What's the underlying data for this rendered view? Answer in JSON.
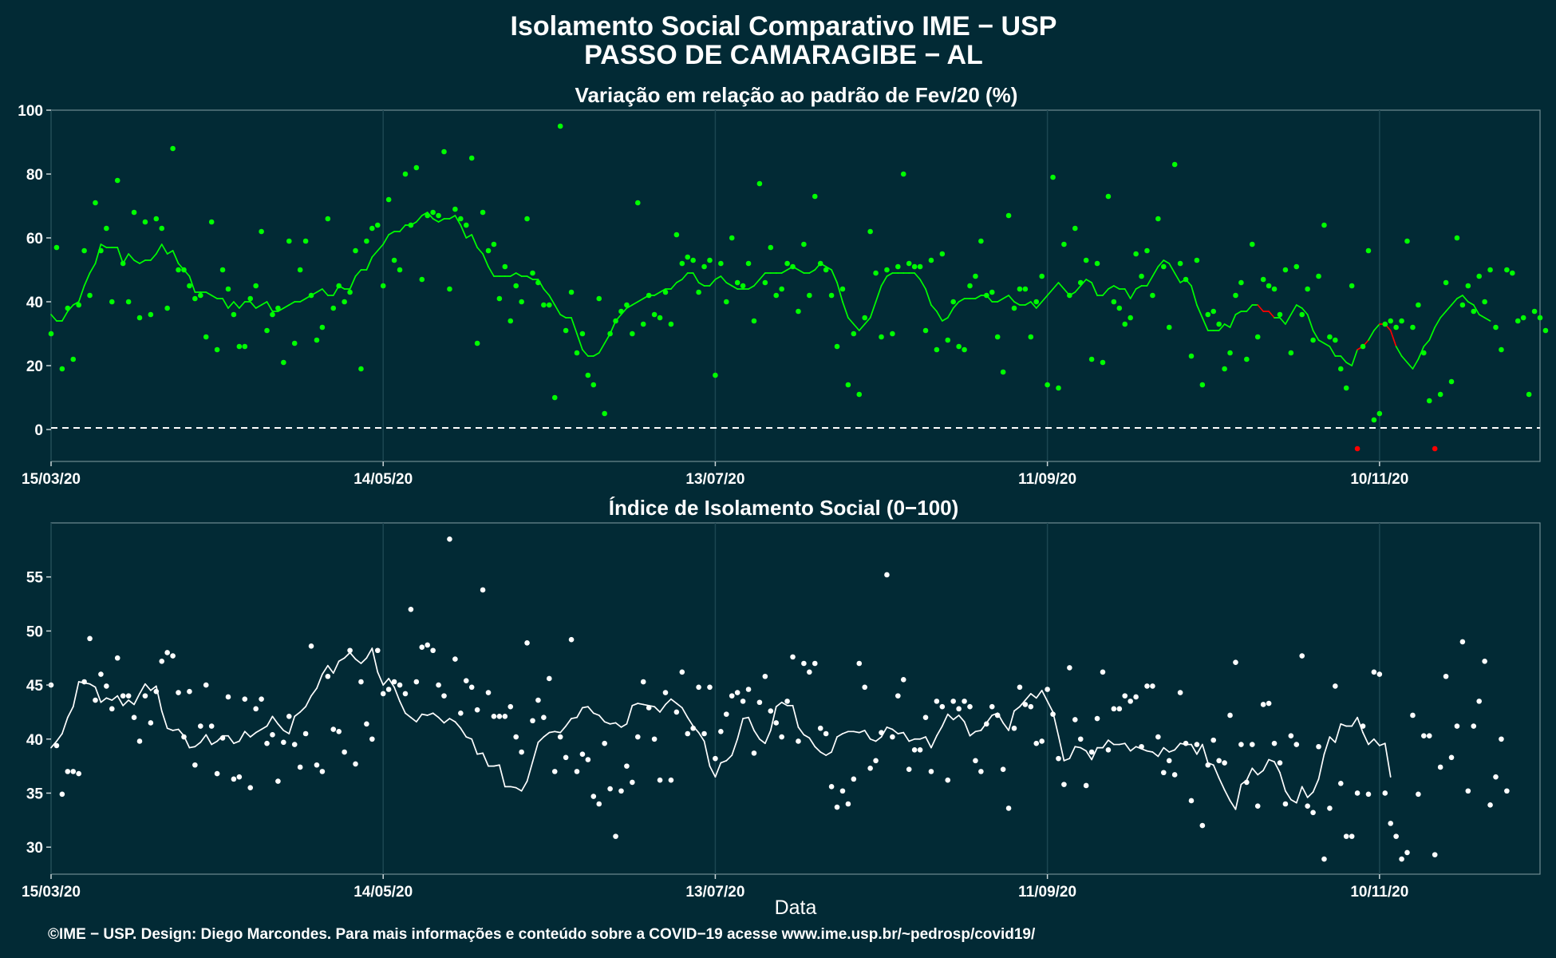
{
  "title_line1": "Isolamento Social Comparativo IME − USP",
  "title_line2": "PASSO DE CAMARAGIBE − AL",
  "footer": "©IME − USP. Design: Diego Marcondes. Para mais informações e conteúdo sobre a COVID−19 acesse www.ime.usp.br/~pedrosp/covid19/",
  "colors": {
    "background": "#022a35",
    "variation": "#00ff00",
    "negative": "#ff0000",
    "index": "#ffffff"
  },
  "chart_data": [
    {
      "type": "scatter",
      "title": "Variação em relação ao padrão de Fev/20 (%)",
      "xlabel": "",
      "ylabel": "",
      "x_ticks": [
        "15/03/20",
        "14/05/20",
        "13/07/20",
        "11/09/20",
        "10/11/20"
      ],
      "xlim": [
        "15/03/20",
        "09/12/20"
      ],
      "ylim": [
        -10,
        100
      ],
      "y_ticks": [
        0,
        20,
        40,
        60,
        80,
        100
      ],
      "reference_line": 0,
      "grid": "vertical lines at date ticks",
      "series": [
        {
          "points": [
            30,
            57,
            19,
            38,
            22,
            39,
            56,
            42,
            71,
            56,
            63,
            40,
            78,
            52,
            40,
            68,
            35,
            65,
            36,
            66,
            63,
            38,
            88,
            50,
            50,
            45,
            41,
            42,
            29,
            65,
            25,
            50,
            44,
            36,
            26,
            26,
            41,
            45,
            62,
            31,
            36,
            38,
            21,
            59,
            27,
            50,
            59,
            42,
            28,
            32,
            66,
            38,
            45,
            40,
            43,
            56,
            19,
            59,
            63,
            64,
            45,
            72,
            53,
            50,
            80,
            64,
            82,
            47,
            67,
            68,
            67,
            87,
            44,
            69,
            66,
            64,
            85,
            27,
            68,
            56,
            58,
            41,
            51,
            34,
            45,
            40,
            66,
            49,
            46,
            39,
            39,
            10,
            95,
            31,
            43,
            24,
            30,
            17,
            14,
            41,
            5,
            30,
            34,
            37,
            39,
            30,
            71,
            33,
            42,
            36,
            35,
            43,
            33,
            61,
            52,
            54,
            53,
            43,
            51,
            53,
            17,
            52,
            40,
            60,
            46,
            45,
            52,
            34,
            77,
            46,
            57,
            42,
            44,
            52,
            51,
            37,
            58,
            42,
            73,
            52,
            50,
            42,
            26,
            44,
            14,
            30,
            11,
            35,
            62,
            49,
            29,
            50,
            30,
            51,
            80,
            52,
            51,
            51,
            31,
            53,
            25,
            55,
            28,
            40,
            26,
            25,
            45,
            48,
            59,
            42,
            43,
            29,
            18,
            67,
            38,
            44,
            44,
            29,
            40,
            48,
            14,
            79,
            13,
            58,
            42,
            63,
            46,
            53,
            22,
            52,
            21,
            73,
            40,
            38,
            33,
            35,
            55,
            48,
            56,
            42,
            66,
            51,
            32,
            83,
            52,
            47,
            23,
            53,
            14,
            36,
            37,
            33,
            19,
            24,
            42,
            46,
            22,
            58,
            29,
            47,
            45,
            44,
            36,
            50,
            24,
            51,
            36,
            44,
            28,
            48,
            64,
            29,
            28,
            19,
            13,
            45,
            -6,
            26,
            56,
            3,
            5,
            33,
            34,
            32,
            34,
            59,
            32,
            39,
            24,
            9,
            -6,
            11,
            46,
            15,
            60,
            39,
            45,
            37,
            48,
            40,
            50,
            32,
            25,
            50,
            49,
            34,
            35,
            11,
            37,
            35,
            31
          ],
          "rolling_mean": [
            36,
            34,
            34,
            37,
            39,
            40,
            45,
            49,
            52,
            58,
            57,
            57,
            57,
            52,
            55,
            53,
            52,
            53,
            53,
            55,
            58,
            55,
            56,
            52,
            50,
            48,
            43,
            43,
            43,
            42,
            41,
            41,
            38,
            40,
            38,
            40,
            40,
            38,
            39,
            40,
            37,
            37,
            38,
            39,
            40,
            40,
            41,
            42,
            43,
            44,
            42,
            42,
            45,
            44,
            44,
            48,
            50,
            50,
            54,
            56,
            58,
            61,
            62,
            62,
            64,
            64,
            65,
            67,
            68,
            66,
            65,
            66,
            66,
            67,
            64,
            60,
            61,
            57,
            55,
            51,
            48,
            48,
            48,
            48,
            49,
            48,
            48,
            47,
            47,
            44,
            42,
            39,
            36,
            35,
            35,
            30,
            25,
            23,
            23,
            24,
            27,
            30,
            34,
            36,
            38,
            39,
            40,
            41,
            42,
            42,
            43,
            44,
            44,
            46,
            47,
            49,
            49,
            46,
            45,
            45,
            47,
            48,
            46,
            45,
            44,
            44,
            44,
            45,
            47,
            49,
            49,
            49,
            49,
            50,
            51,
            50,
            49,
            49,
            50,
            52,
            51,
            50,
            46,
            40,
            35,
            33,
            31,
            33,
            35,
            40,
            45,
            48,
            49,
            49,
            49,
            49,
            49,
            47,
            44,
            39,
            37,
            34,
            35,
            38,
            40,
            41,
            41,
            41,
            42,
            42,
            40,
            40,
            41,
            42,
            40,
            39,
            39,
            40,
            38,
            40,
            42,
            44,
            46,
            44,
            42,
            43,
            45,
            47,
            46,
            42,
            42,
            44,
            45,
            44,
            44,
            41,
            44,
            45,
            45,
            48,
            51,
            53,
            52,
            49,
            46,
            47,
            45,
            39,
            35,
            31,
            31,
            31,
            33,
            32,
            36,
            37,
            37,
            39,
            39,
            37,
            37,
            35,
            35,
            33,
            36,
            39,
            38,
            36,
            31,
            28,
            27,
            26,
            23,
            23,
            21,
            20,
            25,
            26,
            28,
            31,
            33,
            33,
            31,
            26,
            23,
            21,
            19,
            22,
            26,
            28,
            32,
            35,
            37,
            39,
            41,
            42,
            40,
            39,
            36,
            35,
            34
          ],
          "negative_rolling_mean_indices": [
            219,
            220,
            237,
            241,
            242
          ]
        }
      ]
    },
    {
      "type": "scatter",
      "title": "Índice de Isolamento Social (0−100)",
      "xlabel": "Data",
      "ylabel": "",
      "x_ticks": [
        "15/03/20",
        "14/05/20",
        "13/07/20",
        "11/09/20",
        "10/11/20"
      ],
      "xlim": [
        "15/03/20",
        "09/12/20"
      ],
      "ylim": [
        27.5,
        60
      ],
      "y_ticks": [
        30,
        35,
        40,
        45,
        50,
        55
      ],
      "grid": "vertical lines at date ticks",
      "series": [
        {
          "points": [
            45.0,
            39.4,
            34.9,
            37.0,
            37.0,
            36.8,
            45.3,
            49.3,
            43.6,
            46.0,
            44.9,
            42.8,
            47.5,
            44.0,
            44.0,
            42.0,
            39.8,
            44.0,
            41.5,
            44.4,
            47.2,
            48.0,
            47.7,
            44.3,
            40.2,
            44.4,
            37.6,
            41.2,
            45.0,
            41.2,
            36.8,
            40.1,
            43.9,
            36.3,
            36.5,
            43.7,
            35.5,
            42.8,
            43.7,
            39.6,
            40.4,
            36.1,
            39.7,
            42.1,
            39.5,
            37.4,
            40.5,
            48.6,
            37.6,
            37.0,
            45.8,
            40.9,
            40.7,
            38.8,
            48.2,
            37.7,
            45.3,
            41.4,
            40.0,
            48.2,
            44.2,
            44.6,
            45.3,
            45.0,
            44.2,
            52.0,
            45.3,
            48.5,
            48.7,
            48.2,
            45.0,
            44.0,
            58.5,
            47.4,
            42.4,
            45.4,
            44.8,
            42.7,
            53.8,
            44.3,
            42.1,
            42.1,
            42.1,
            43.0,
            40.2,
            38.8,
            48.9,
            41.7,
            43.6,
            42.0,
            45.6,
            37.0,
            40.2,
            38.3,
            49.2,
            37.0,
            38.6,
            38.1,
            34.7,
            34.0,
            39.6,
            35.4,
            31.0,
            35.2,
            37.5,
            36.0,
            40.2,
            45.3,
            42.9,
            40.0,
            36.2,
            44.3,
            36.2,
            42.5,
            46.2,
            40.5,
            41.0,
            44.8,
            40.5,
            44.8,
            38.2,
            40.7,
            42.3,
            44.0,
            44.3,
            43.5,
            44.6,
            38.7,
            43.4,
            45.8,
            42.6,
            41.5,
            40.2,
            43.5,
            47.6,
            39.8,
            47.0,
            46.2,
            47.0,
            41.0,
            40.5,
            35.6,
            33.7,
            35.2,
            34.0,
            36.3,
            47.0,
            44.8,
            37.3,
            38.0,
            40.6,
            55.2,
            40.2,
            44.0,
            45.5,
            37.2,
            39.0,
            39.0,
            42.0,
            37.0,
            43.5,
            43.0,
            36.2,
            43.5,
            42.8,
            43.5,
            43.0,
            38.0,
            37.0,
            41.4,
            43.0,
            42.2,
            37.2,
            33.6,
            41.0,
            44.8,
            43.2,
            43.0,
            39.6,
            39.8,
            44.6,
            42.3,
            38.2,
            35.8,
            46.6,
            41.8,
            40.0,
            35.7,
            38.8,
            41.9,
            46.2,
            39.0,
            42.8,
            42.8,
            44.0,
            43.5,
            43.9,
            39.3,
            44.9,
            44.9,
            40.2,
            36.9,
            38.0,
            36.7,
            44.3,
            39.6,
            34.3,
            39.5,
            32.0,
            37.6,
            39.9,
            38.0,
            37.8,
            42.2,
            47.1,
            39.5,
            36.0,
            39.5,
            33.8,
            43.2,
            43.3,
            39.6,
            37.8,
            34.0,
            40.3,
            39.5,
            47.7,
            33.8,
            33.2,
            39.3,
            28.9,
            33.6,
            44.9,
            35.9,
            31.0,
            31.0,
            35.0,
            41.2,
            34.9,
            46.2,
            46.0,
            35.0,
            32.2,
            31.0,
            28.9,
            29.5,
            42.2,
            34.9,
            40.3,
            40.3,
            29.3,
            37.4,
            45.8,
            38.3,
            41.2,
            49.0,
            35.2,
            41.2,
            43.5,
            47.2,
            33.9,
            36.5,
            40.0,
            35.2
          ],
          "rolling_mean": [
            39.2,
            39.8,
            40.5,
            42.0,
            43.0,
            45.3,
            45.2,
            45.1,
            44.8,
            43.4,
            43.8,
            43.6,
            44.0,
            43.1,
            43.6,
            43.2,
            44.2,
            45.1,
            44.5,
            44.9,
            42.6,
            41.0,
            40.8,
            40.9,
            40.3,
            39.2,
            39.3,
            39.7,
            40.4,
            39.5,
            39.8,
            40.3,
            40.3,
            39.6,
            39.8,
            40.7,
            40.2,
            40.6,
            40.9,
            41.2,
            42.1,
            41.4,
            40.8,
            40.5,
            42.1,
            42.5,
            43.0,
            44.0,
            44.7,
            46.0,
            46.8,
            46.1,
            47.2,
            47.5,
            48.0,
            47.4,
            47.0,
            47.5,
            48.4,
            46.2,
            45.0,
            45.6,
            44.8,
            43.5,
            42.4,
            42.0,
            41.6,
            42.3,
            42.2,
            42.4,
            42.0,
            41.5,
            41.9,
            41.6,
            41.0,
            40.2,
            40.0,
            38.6,
            38.7,
            37.5,
            37.5,
            37.6,
            35.6,
            35.6,
            35.5,
            35.2,
            36.1,
            37.9,
            39.7,
            40.2,
            40.6,
            40.7,
            40.6,
            41.2,
            41.9,
            42.0,
            42.9,
            43.0,
            42.4,
            42.2,
            41.6,
            41.4,
            41.5,
            41.1,
            41.4,
            43.1,
            43.3,
            43.2,
            43.1,
            43.0,
            42.5,
            43.2,
            43.7,
            43.3,
            42.9,
            42.0,
            41.2,
            40.6,
            39.8,
            37.5,
            36.5,
            37.8,
            38.0,
            38.5,
            40.0,
            41.9,
            42.0,
            40.8,
            40.0,
            39.6,
            40.8,
            43.0,
            43.4,
            43.1,
            43.1,
            41.1,
            40.4,
            40.1,
            39.3,
            38.8,
            38.5,
            38.8,
            40.2,
            40.5,
            40.7,
            40.7,
            40.6,
            40.8,
            40.0,
            39.8,
            40.2,
            41.1,
            40.9,
            40.5,
            40.6,
            39.8,
            40.0,
            40.0,
            40.2,
            39.2,
            40.3,
            41.2,
            42.3,
            41.8,
            42.2,
            41.6,
            40.3,
            40.7,
            40.8,
            41.5,
            42.2,
            42.4,
            41.5,
            40.8,
            42.6,
            43.0,
            43.6,
            44.2,
            43.8,
            44.5,
            43.5,
            42.5,
            40.3,
            38.0,
            38.2,
            39.3,
            39.2,
            38.9,
            38.1,
            39.2,
            39.2,
            39.9,
            39.5,
            39.5,
            39.6,
            38.9,
            39.3,
            39.1,
            38.9,
            38.8,
            38.4,
            39.2,
            38.8,
            39.0,
            39.6,
            39.5,
            39.5,
            38.6,
            39.5,
            37.8,
            37.6,
            36.4,
            35.3,
            34.3,
            33.5,
            35.8,
            36.2,
            37.3,
            36.7,
            37.1,
            38.1,
            37.9,
            36.9,
            35.2,
            34.4,
            34.1,
            35.6,
            34.6,
            35.1,
            36.3,
            38.6,
            40.2,
            39.7,
            41.4,
            41.2,
            41.2,
            42.0,
            40.6,
            39.5,
            40.0,
            39.4,
            39.6,
            36.5
          ]
        }
      ]
    }
  ]
}
